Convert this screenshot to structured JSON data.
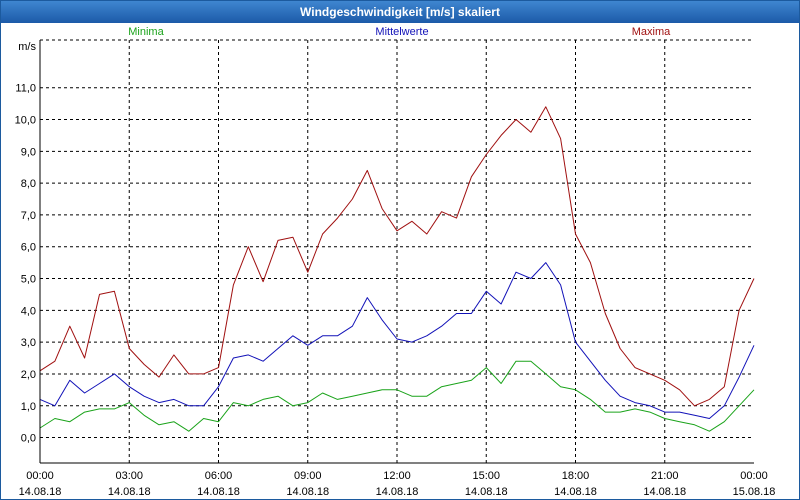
{
  "window": {
    "title": "Windgeschwindigkeit [m/s] skaliert"
  },
  "colors": {
    "minima": "#1aa31a",
    "mittel": "#1212b8",
    "maxima": "#a01010",
    "grid": "#000000"
  },
  "chart_data": {
    "type": "line",
    "title": "Windgeschwindigkeit [m/s] skaliert",
    "ylabel": "m/s",
    "xlabel": "",
    "ylim": [
      -0.8,
      12.5
    ],
    "xlim": [
      0,
      24
    ],
    "y_ticks": [
      "0,0",
      "1,0",
      "2,0",
      "3,0",
      "4,0",
      "5,0",
      "6,0",
      "7,0",
      "8,0",
      "9,0",
      "10,0",
      "11,0"
    ],
    "x_ticks": [
      {
        "time": "00:00",
        "date": "14.08.18"
      },
      {
        "time": "03:00",
        "date": "14.08.18"
      },
      {
        "time": "06:00",
        "date": "14.08.18"
      },
      {
        "time": "09:00",
        "date": "14.08.18"
      },
      {
        "time": "12:00",
        "date": "14.08.18"
      },
      {
        "time": "15:00",
        "date": "14.08.18"
      },
      {
        "time": "18:00",
        "date": "14.08.18"
      },
      {
        "time": "21:00",
        "date": "14.08.18"
      },
      {
        "time": "00:00",
        "date": "15.08.18"
      }
    ],
    "x_hours": [
      0,
      0.5,
      1,
      1.5,
      2,
      2.5,
      3,
      3.5,
      4,
      4.5,
      5,
      5.5,
      6,
      6.5,
      7,
      7.5,
      8,
      8.5,
      9,
      9.5,
      10,
      10.5,
      11,
      11.5,
      12,
      12.5,
      13,
      13.5,
      14,
      14.5,
      15,
      15.5,
      16,
      16.5,
      17,
      17.5,
      18,
      18.5,
      19,
      19.5,
      20,
      20.5,
      21,
      21.5,
      22,
      22.5,
      23,
      23.5,
      24
    ],
    "series": [
      {
        "name": "Minima",
        "legend": "Minima",
        "values": [
          0.3,
          0.6,
          0.5,
          0.8,
          0.9,
          0.9,
          1.1,
          0.7,
          0.4,
          0.5,
          0.2,
          0.6,
          0.5,
          1.1,
          1.0,
          1.2,
          1.3,
          1.0,
          1.1,
          1.4,
          1.2,
          1.3,
          1.4,
          1.5,
          1.5,
          1.3,
          1.3,
          1.6,
          1.7,
          1.8,
          2.2,
          1.7,
          2.4,
          2.4,
          2.0,
          1.6,
          1.5,
          1.2,
          0.8,
          0.8,
          0.9,
          0.8,
          0.6,
          0.5,
          0.4,
          0.2,
          0.5,
          1.0,
          1.5
        ]
      },
      {
        "name": "Mittelwerte",
        "legend": "Mittelwerte",
        "values": [
          1.2,
          1.0,
          1.8,
          1.4,
          1.7,
          2.0,
          1.6,
          1.3,
          1.1,
          1.2,
          1.0,
          1.0,
          1.6,
          2.5,
          2.6,
          2.4,
          2.8,
          3.2,
          2.9,
          3.2,
          3.2,
          3.5,
          4.4,
          3.7,
          3.1,
          3.0,
          3.2,
          3.5,
          3.9,
          3.9,
          4.6,
          4.2,
          5.2,
          5.0,
          5.5,
          4.8,
          3.0,
          2.4,
          1.8,
          1.3,
          1.1,
          1.0,
          0.8,
          0.8,
          0.7,
          0.6,
          1.0,
          1.9,
          2.9
        ]
      },
      {
        "name": "Maxima",
        "legend": "Maxima",
        "values": [
          2.1,
          2.4,
          3.5,
          2.5,
          4.5,
          4.6,
          2.8,
          2.3,
          1.9,
          2.6,
          2.0,
          2.0,
          2.2,
          4.8,
          6.0,
          4.9,
          6.2,
          6.3,
          5.2,
          6.4,
          6.9,
          7.5,
          8.4,
          7.2,
          6.5,
          6.8,
          6.4,
          7.1,
          6.9,
          8.2,
          8.9,
          9.5,
          10.0,
          9.6,
          10.4,
          9.4,
          6.4,
          5.5,
          3.9,
          2.8,
          2.2,
          2.0,
          1.8,
          1.5,
          1.0,
          1.2,
          1.6,
          4.0,
          5.0
        ]
      }
    ]
  }
}
